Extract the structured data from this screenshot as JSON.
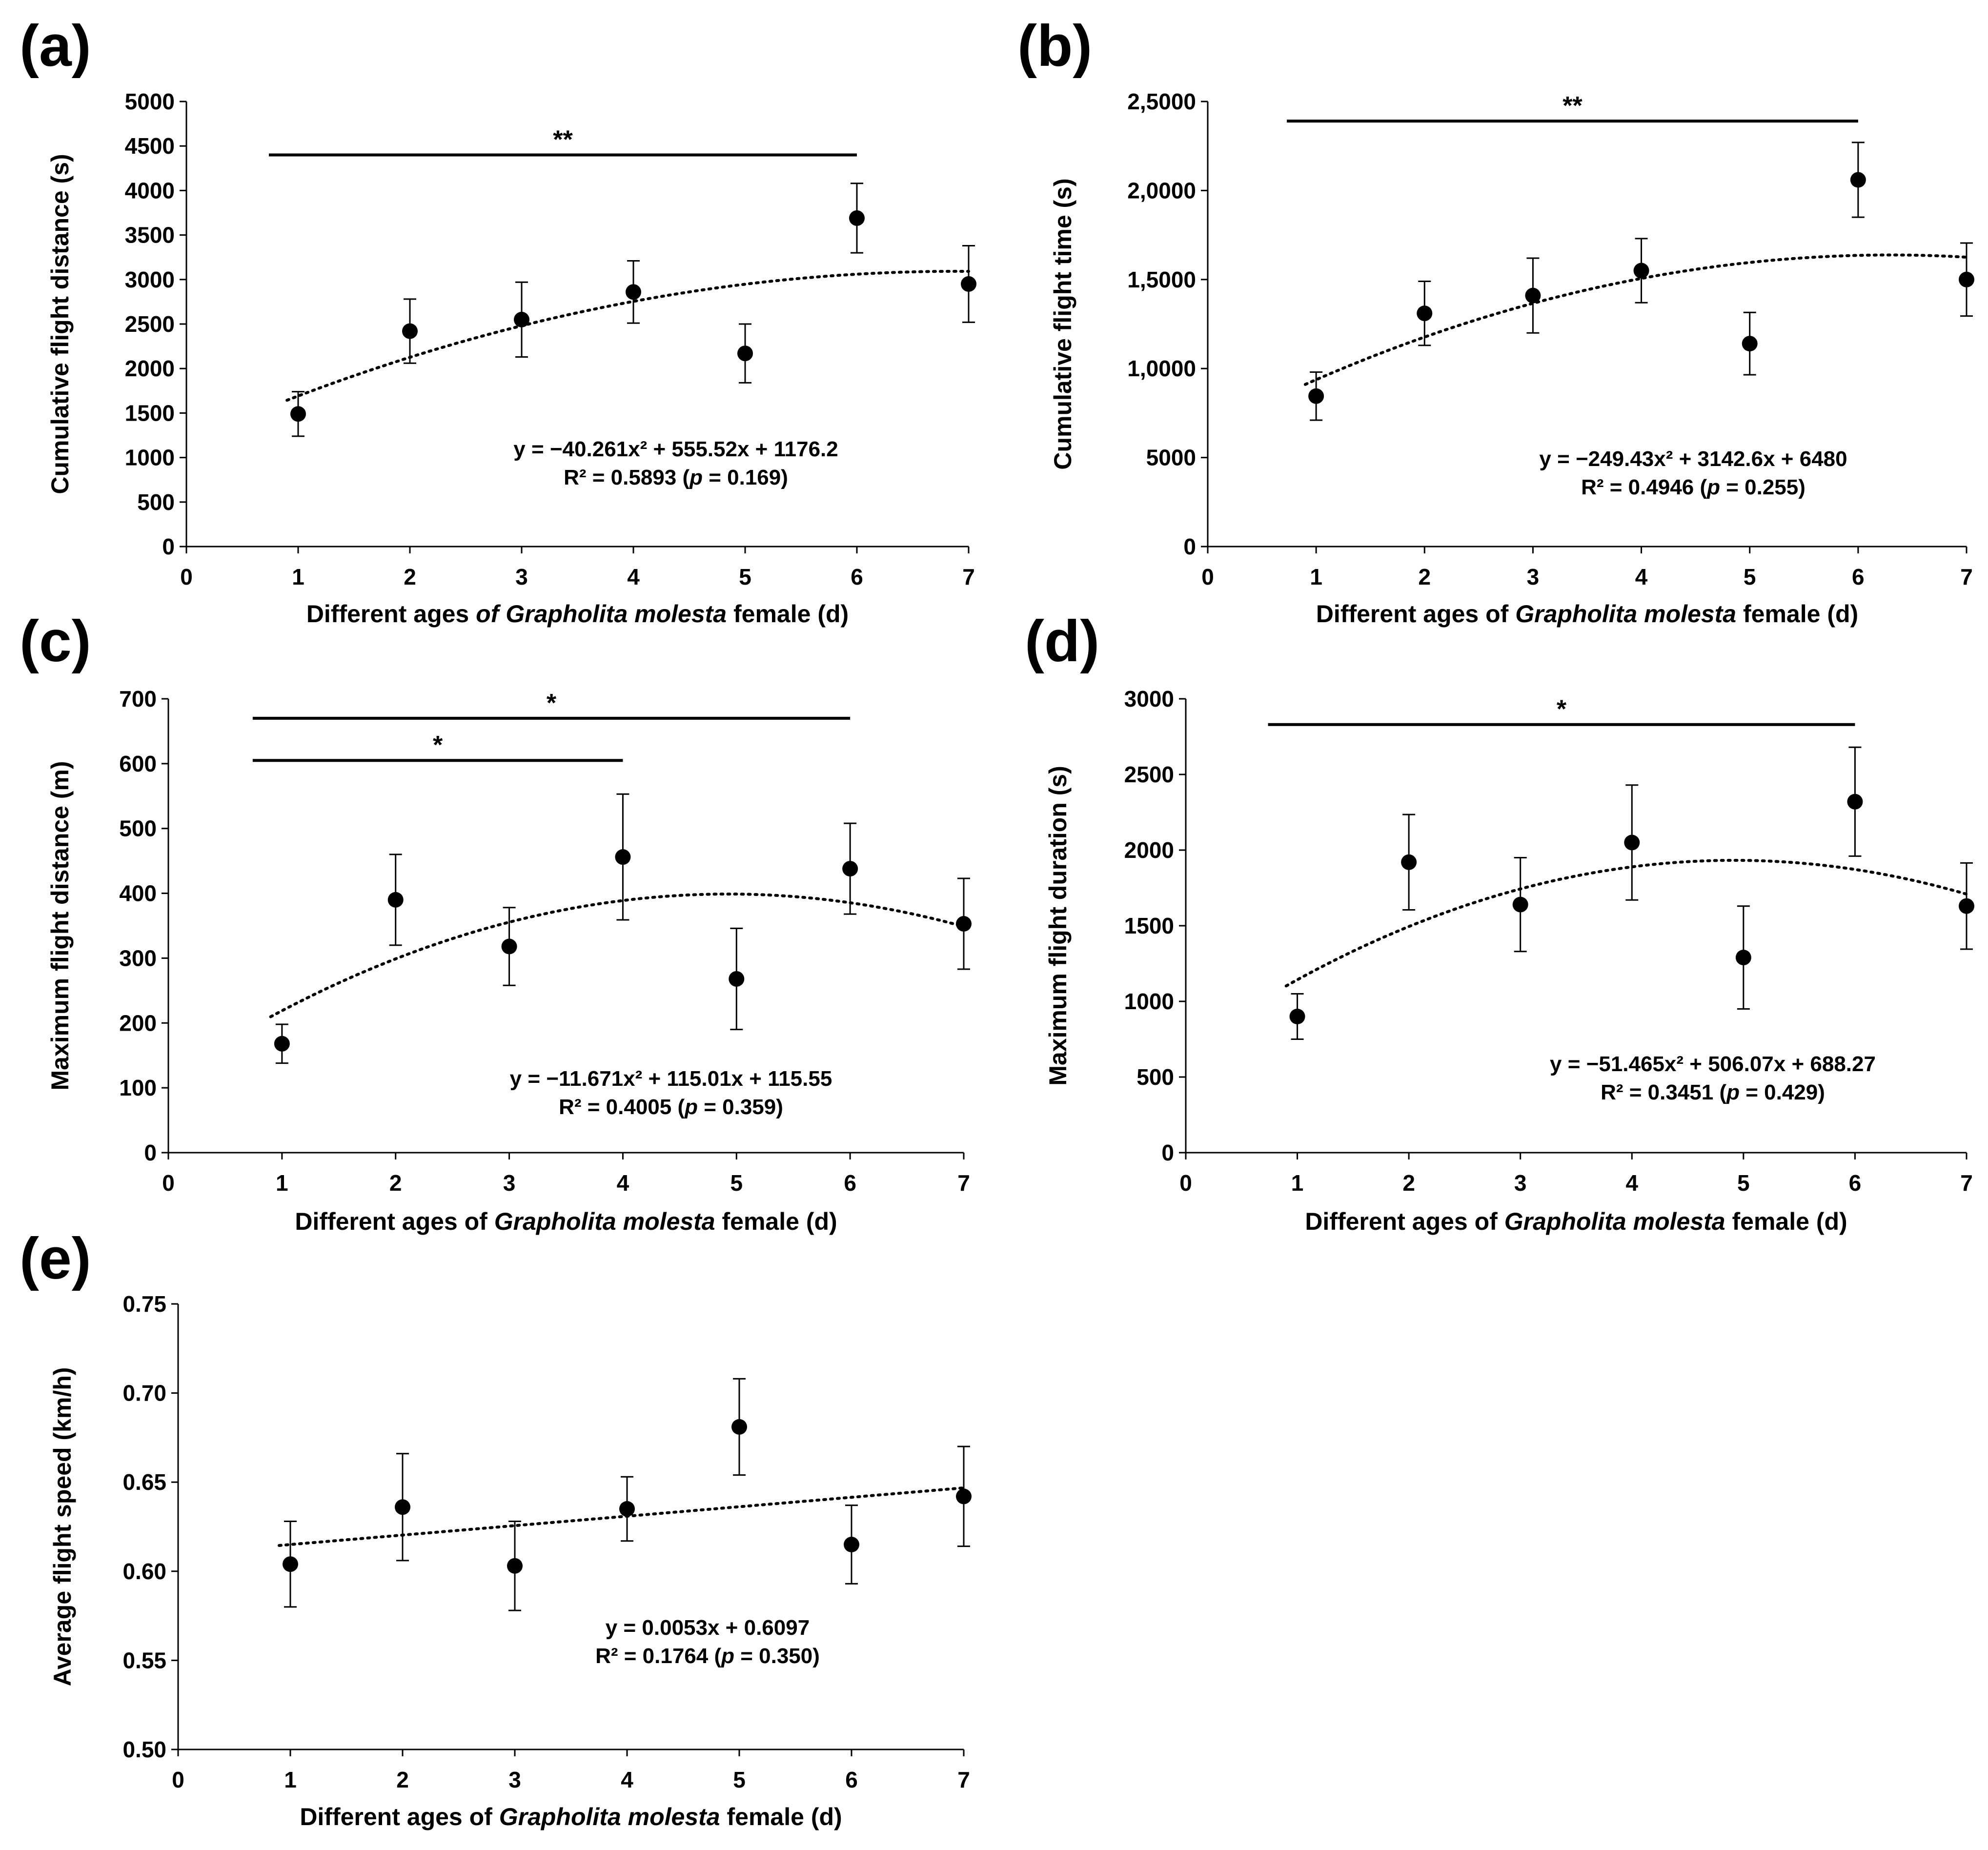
{
  "chart_data": [
    {
      "panel": "(a)",
      "type": "scatter",
      "x": [
        1,
        2,
        3,
        4,
        5,
        6,
        7
      ],
      "values": [
        1490,
        2420,
        2550,
        2860,
        2170,
        3690,
        2950
      ],
      "errors": [
        250,
        360,
        420,
        350,
        330,
        390,
        430
      ],
      "xlim": [
        0,
        7
      ],
      "xticks": [
        0,
        1,
        2,
        3,
        4,
        5,
        6,
        7
      ],
      "ylim": [
        0,
        5000
      ],
      "yticks": [
        "0",
        "500",
        "1000",
        "1500",
        "2000",
        "2500",
        "3000",
        "3500",
        "4000",
        "4500",
        "5000"
      ],
      "xlabel_parts": [
        "Different ages ",
        "of Grapholita molesta",
        " female (d)"
      ],
      "ylabel": "Cumulative flight distance (s)",
      "trend": {
        "kind": "quadratic",
        "coef": [
          -40.261,
          555.52,
          1176.2
        ]
      },
      "equation": "y = −40.261x² + 555.52x + 1176.2",
      "r2_line": [
        "R² = 0.5893   (",
        "p",
        " = 0.169)"
      ],
      "significance": [
        {
          "from": 1,
          "to": 6,
          "label": "**",
          "y": 4400
        }
      ]
    },
    {
      "panel": "(b)",
      "type": "scatter",
      "x": [
        1,
        2,
        3,
        4,
        5,
        6,
        7
      ],
      "values": [
        8450,
        13100,
        14100,
        15500,
        11400,
        20600,
        15000
      ],
      "errors": [
        1350,
        1800,
        2100,
        1800,
        1750,
        2100,
        2050
      ],
      "xlim": [
        0,
        7
      ],
      "xticks": [
        0,
        1,
        2,
        3,
        4,
        5,
        6,
        7
      ],
      "ylim": [
        0,
        25000
      ],
      "yticks": [
        "0",
        "5000",
        "1,0000",
        "1,5000",
        "2,0000",
        "2,5000"
      ],
      "xlabel_parts": [
        "Different ages of ",
        "Grapholita molesta",
        " female (d)"
      ],
      "ylabel": "Cumulative flight time (s)",
      "trend": {
        "kind": "quadratic",
        "coef": [
          -249.43,
          3142.6,
          6480
        ]
      },
      "equation": "y = −249.43x² + 3142.6x + 6480",
      "r2_line": [
        "R² = 0.4946 (",
        "p",
        " = 0.255)"
      ],
      "significance": [
        {
          "from": 1,
          "to": 6,
          "label": "**",
          "y": 23900
        }
      ]
    },
    {
      "panel": "(c)",
      "type": "scatter",
      "x": [
        1,
        2,
        3,
        4,
        5,
        6,
        7
      ],
      "values": [
        168,
        390,
        318,
        456,
        268,
        438,
        353
      ],
      "errors": [
        30,
        70,
        60,
        97,
        78,
        70,
        70
      ],
      "xlim": [
        0,
        7
      ],
      "xticks": [
        0,
        1,
        2,
        3,
        4,
        5,
        6,
        7
      ],
      "ylim": [
        0,
        700
      ],
      "yticks": [
        "0",
        "100",
        "200",
        "300",
        "400",
        "500",
        "600",
        "700"
      ],
      "xlabel_parts": [
        "Different ages of ",
        "Grapholita molesta",
        " female (d)"
      ],
      "ylabel": "Maximum flight distance (m)",
      "trend": {
        "kind": "quadratic",
        "coef": [
          -11.671,
          115.01,
          115.55
        ]
      },
      "equation": "y = −11.671x² + 115.01x + 115.55",
      "r2_line": [
        "R² = 0.4005 (",
        "p",
        " = 0.359)"
      ],
      "significance": [
        {
          "from": 1,
          "to": 6,
          "label": "*",
          "y": 670
        },
        {
          "from": 1,
          "to": 4,
          "label": "*",
          "y": 605
        }
      ]
    },
    {
      "panel": "(d)",
      "type": "scatter",
      "x": [
        1,
        2,
        3,
        4,
        5,
        6,
        7
      ],
      "values": [
        900,
        1920,
        1640,
        2050,
        1290,
        2320,
        1630
      ],
      "errors": [
        150,
        315,
        310,
        380,
        340,
        360,
        285
      ],
      "xlim": [
        0,
        7
      ],
      "xticks": [
        0,
        1,
        2,
        3,
        4,
        5,
        6,
        7
      ],
      "ylim": [
        0,
        3000
      ],
      "yticks": [
        "0",
        "500",
        "1000",
        "1500",
        "2000",
        "2500",
        "3000"
      ],
      "xlabel_parts": [
        "Different ages of ",
        "Grapholita molesta",
        " female (d)"
      ],
      "ylabel": "Maximum flight duration (s)",
      "trend": {
        "kind": "quadratic",
        "coef": [
          -51.465,
          506.07,
          688.27
        ]
      },
      "equation": "y = −51.465x² + 506.07x + 688.27",
      "r2_line": [
        "R² = 0.3451 (",
        "p",
        " = 0.429)"
      ],
      "significance": [
        {
          "from": 1,
          "to": 6,
          "label": "*",
          "y": 2830
        }
      ]
    },
    {
      "panel": "(e)",
      "type": "scatter",
      "x": [
        1,
        2,
        3,
        4,
        5,
        6,
        7
      ],
      "values": [
        0.604,
        0.636,
        0.603,
        0.635,
        0.681,
        0.615,
        0.642
      ],
      "errors": [
        0.024,
        0.03,
        0.025,
        0.018,
        0.027,
        0.022,
        0.028
      ],
      "xlim": [
        0,
        7
      ],
      "xticks": [
        0,
        1,
        2,
        3,
        4,
        5,
        6,
        7
      ],
      "ylim": [
        0.5,
        0.75
      ],
      "yticks": [
        "0.50",
        "0.55",
        "0.60",
        "0.65",
        "0.70",
        "0.75"
      ],
      "xlabel_parts": [
        "Different ages of ",
        "Grapholita molesta",
        " female (d)"
      ],
      "ylabel": "Average flight speed (km/h)",
      "trend": {
        "kind": "linear",
        "coef": [
          0.0053,
          0.6097
        ]
      },
      "equation": "y = 0.0053x + 0.6097",
      "r2_line": [
        "R² = 0.1764 (",
        "p",
        " = 0.350)"
      ],
      "significance": []
    }
  ]
}
